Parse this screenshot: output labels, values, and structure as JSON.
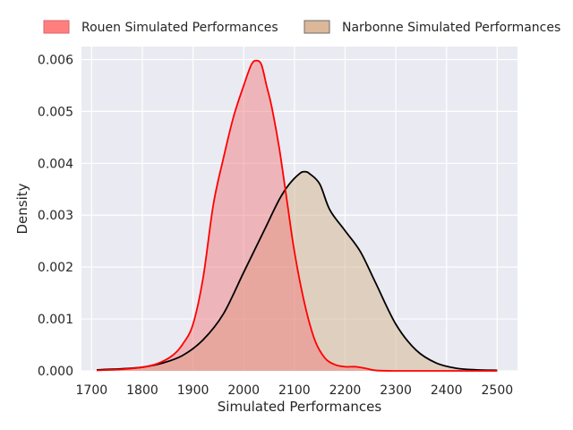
{
  "chart_data": {
    "type": "area",
    "title": "",
    "xlabel": "Simulated Performances",
    "ylabel": "Density",
    "xlim": [
      1680,
      2540
    ],
    "ylim": [
      0,
      0.00625
    ],
    "x_ticks": [
      1700,
      1800,
      1900,
      2000,
      2100,
      2200,
      2300,
      2400,
      2500
    ],
    "y_ticks": [
      0.0,
      0.001,
      0.002,
      0.003,
      0.004,
      0.005,
      0.006
    ],
    "y_tick_labels": [
      "0.000",
      "0.001",
      "0.002",
      "0.003",
      "0.004",
      "0.005",
      "0.006"
    ],
    "grid": true,
    "legend_position": "top",
    "series": [
      {
        "name": "Rouen Simulated Performances",
        "fill_color": "#f08080",
        "legend_color": "#ff7f7f",
        "line_color": "#ff0000",
        "x": [
          1710,
          1760,
          1800,
          1830,
          1860,
          1880,
          1900,
          1920,
          1940,
          1960,
          1980,
          2000,
          2015,
          2025,
          2035,
          2045,
          2055,
          2070,
          2085,
          2100,
          2120,
          2140,
          2160,
          2180,
          2200,
          2220,
          2240,
          2260,
          2300,
          2400,
          2500
        ],
        "y": [
          1e-05,
          3e-05,
          7e-05,
          0.00014,
          0.0003,
          0.00052,
          0.0009,
          0.0018,
          0.0032,
          0.0041,
          0.0049,
          0.0055,
          0.0059,
          0.00598,
          0.0059,
          0.0055,
          0.0051,
          0.0043,
          0.0033,
          0.0023,
          0.0013,
          0.0006,
          0.00025,
          0.00012,
          8e-05,
          8e-05,
          5e-05,
          1e-05,
          0.0,
          0.0,
          0.0
        ]
      },
      {
        "name": "Narbonne Simulated Performances",
        "fill_color": "#d2b48c",
        "legend_color": "#dbb899",
        "line_color": "#000000",
        "x": [
          1710,
          1760,
          1800,
          1840,
          1880,
          1920,
          1960,
          2000,
          2040,
          2070,
          2090,
          2110,
          2120,
          2130,
          2150,
          2170,
          2200,
          2230,
          2260,
          2300,
          2340,
          2380,
          2420,
          2460,
          2500
        ],
        "y": [
          2e-05,
          4e-05,
          7e-05,
          0.00015,
          0.0003,
          0.0006,
          0.0011,
          0.0019,
          0.0027,
          0.0033,
          0.0036,
          0.0038,
          0.00384,
          0.0038,
          0.0036,
          0.0031,
          0.0027,
          0.0023,
          0.0017,
          0.0009,
          0.0004,
          0.00015,
          5e-05,
          2e-05,
          1e-05
        ]
      }
    ]
  }
}
